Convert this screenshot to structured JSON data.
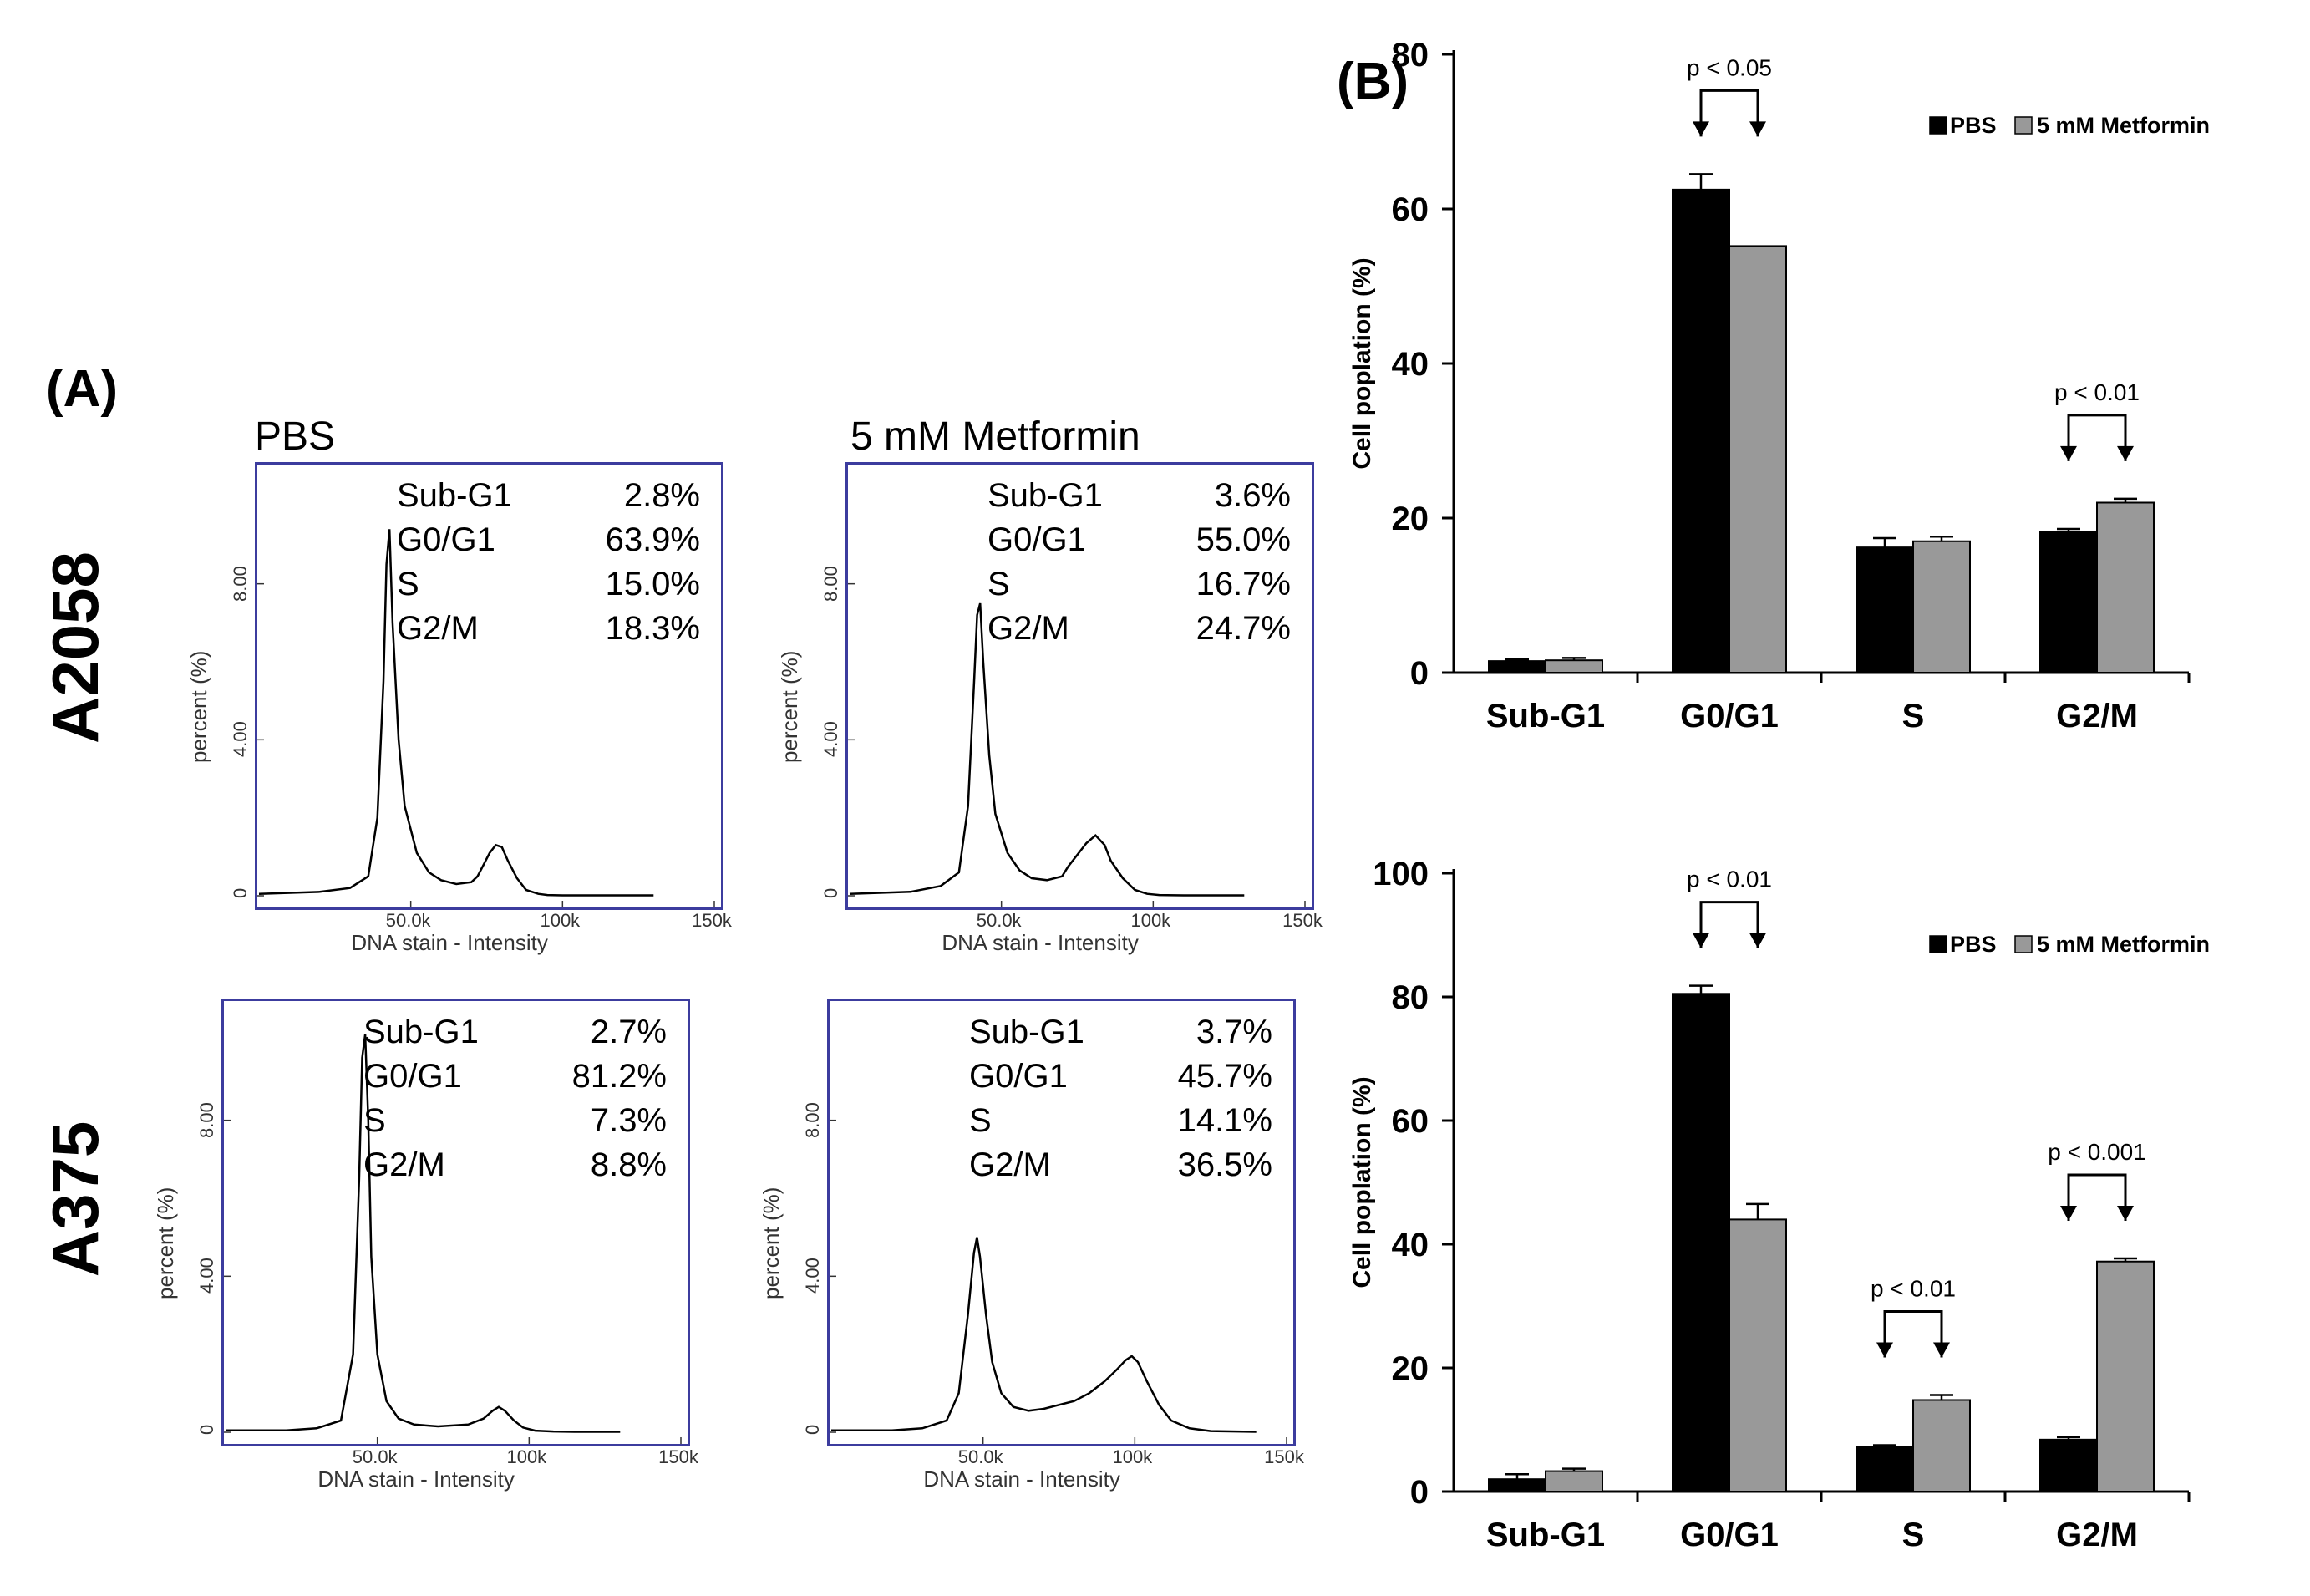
{
  "panel_a": {
    "label": "(A)",
    "column_headers": [
      "PBS",
      "5 mM Metformin"
    ],
    "row_labels": [
      "A2058",
      "A375"
    ],
    "histogram_x_label": "DNA stain - Intensity",
    "histogram_y_label": "percent (%)",
    "histogram_x_ticks": [
      "50.0k",
      "100k",
      "150k"
    ],
    "histogram_y_ticks": [
      "0",
      "4.00",
      "8.00"
    ]
  },
  "panel_b": {
    "label": "(B)"
  },
  "chart_data": [
    {
      "type": "area",
      "cell_line": "A2058",
      "condition": "PBS",
      "x": [
        0,
        20,
        30,
        36,
        39,
        41,
        42,
        43,
        44,
        46,
        48,
        52,
        56,
        60,
        65,
        70,
        72,
        74,
        76,
        78,
        80,
        82,
        85,
        88,
        92,
        95,
        100,
        110,
        120,
        130
      ],
      "y": [
        0.05,
        0.1,
        0.2,
        0.5,
        2.0,
        5.5,
        8.5,
        9.4,
        7.0,
        4.0,
        2.3,
        1.1,
        0.6,
        0.4,
        0.3,
        0.35,
        0.5,
        0.8,
        1.1,
        1.3,
        1.25,
        0.9,
        0.45,
        0.15,
        0.05,
        0.02,
        0.01,
        0.01,
        0.01,
        0.01
      ],
      "populations": [
        {
          "phase": "Sub-G1",
          "percent": "2.8%"
        },
        {
          "phase": "G0/G1",
          "percent": "63.9%"
        },
        {
          "phase": "S",
          "percent": "15.0%"
        },
        {
          "phase": "G2/M",
          "percent": "18.3%"
        }
      ]
    },
    {
      "type": "area",
      "cell_line": "A2058",
      "condition": "5 mM Metformin",
      "x": [
        0,
        20,
        30,
        36,
        39,
        41,
        42,
        43,
        44,
        46,
        48,
        52,
        56,
        60,
        65,
        70,
        72,
        75,
        78,
        81,
        84,
        86,
        90,
        94,
        98,
        102,
        110,
        120,
        130
      ],
      "y": [
        0.05,
        0.1,
        0.25,
        0.6,
        2.3,
        5.5,
        7.2,
        7.5,
        6.0,
        3.6,
        2.1,
        1.1,
        0.65,
        0.45,
        0.4,
        0.5,
        0.75,
        1.05,
        1.35,
        1.55,
        1.3,
        0.9,
        0.45,
        0.15,
        0.05,
        0.02,
        0.01,
        0.01,
        0.01
      ],
      "populations": [
        {
          "phase": "Sub-G1",
          "percent": "3.6%"
        },
        {
          "phase": "G0/G1",
          "percent": "55.0%"
        },
        {
          "phase": "S",
          "percent": "16.7%"
        },
        {
          "phase": "G2/M",
          "percent": "24.7%"
        }
      ]
    },
    {
      "type": "area",
      "cell_line": "A375",
      "condition": "PBS",
      "x": [
        0,
        20,
        30,
        38,
        42,
        44,
        45,
        46,
        47,
        48,
        50,
        53,
        57,
        62,
        70,
        80,
        85,
        88,
        90,
        92,
        95,
        98,
        102,
        108,
        115,
        130
      ],
      "y": [
        0.05,
        0.05,
        0.1,
        0.3,
        2.0,
        6.5,
        9.6,
        10.2,
        8.0,
        4.5,
        2.0,
        0.8,
        0.35,
        0.2,
        0.15,
        0.2,
        0.35,
        0.55,
        0.65,
        0.55,
        0.3,
        0.12,
        0.04,
        0.02,
        0.01,
        0.01
      ],
      "populations": [
        {
          "phase": "Sub-G1",
          "percent": "2.7%"
        },
        {
          "phase": "G0/G1",
          "percent": "81.2%"
        },
        {
          "phase": "S",
          "percent": "7.3%"
        },
        {
          "phase": "G2/M",
          "percent": "8.8%"
        }
      ]
    },
    {
      "type": "area",
      "cell_line": "A375",
      "condition": "5 mM Metformin",
      "x": [
        0,
        20,
        30,
        38,
        42,
        45,
        47,
        48,
        49,
        51,
        53,
        56,
        60,
        65,
        70,
        75,
        80,
        85,
        90,
        94,
        97,
        99,
        101,
        104,
        108,
        112,
        118,
        125,
        140
      ],
      "y": [
        0.05,
        0.05,
        0.1,
        0.3,
        1.0,
        3.0,
        4.6,
        5.0,
        4.5,
        3.0,
        1.8,
        1.0,
        0.65,
        0.55,
        0.6,
        0.7,
        0.8,
        1.0,
        1.3,
        1.6,
        1.85,
        1.95,
        1.8,
        1.3,
        0.7,
        0.3,
        0.1,
        0.03,
        0.01
      ],
      "populations": [
        {
          "phase": "Sub-G1",
          "percent": "3.7%"
        },
        {
          "phase": "G0/G1",
          "percent": "45.7%"
        },
        {
          "phase": "S",
          "percent": "14.1%"
        },
        {
          "phase": "G2/M",
          "percent": "36.5%"
        }
      ]
    },
    {
      "type": "bar",
      "cell_line": "A2058",
      "categories": [
        "Sub-G1",
        "G0/G1",
        "S",
        "G2/M"
      ],
      "series": [
        {
          "name": "PBS",
          "values": [
            1.5,
            62.5,
            16.2,
            18.2
          ],
          "errors": [
            0.2,
            2.0,
            1.2,
            0.4
          ],
          "color": "#000000"
        },
        {
          "name": "5 mM Metformin",
          "values": [
            1.6,
            55.2,
            17.0,
            22.0
          ],
          "errors": [
            0.3,
            0.0,
            0.6,
            0.5
          ],
          "color": "#999999"
        }
      ],
      "ylabel": "Cell poplation (%)",
      "ylim": [
        0,
        80
      ],
      "yticks": [
        0,
        20,
        40,
        60,
        80
      ],
      "annotations": [
        {
          "category": "G0/G1",
          "text": "p < 0.05"
        },
        {
          "category": "G2/M",
          "text": "p < 0.01"
        }
      ]
    },
    {
      "type": "bar",
      "cell_line": "A375",
      "categories": [
        "Sub-G1",
        "G0/G1",
        "S",
        "G2/M"
      ],
      "series": [
        {
          "name": "PBS",
          "values": [
            2.0,
            80.5,
            7.2,
            8.4
          ],
          "errors": [
            0.8,
            1.3,
            0.3,
            0.4
          ],
          "color": "#000000"
        },
        {
          "name": "5 mM Metformin",
          "values": [
            3.3,
            44.0,
            14.8,
            37.2
          ],
          "errors": [
            0.4,
            2.5,
            0.8,
            0.5
          ],
          "color": "#999999"
        }
      ],
      "ylabel": "Cell poplation (%)",
      "ylim": [
        0,
        100
      ],
      "yticks": [
        0,
        20,
        40,
        60,
        80,
        100
      ],
      "annotations": [
        {
          "category": "G0/G1",
          "text": "p < 0.01"
        },
        {
          "category": "S",
          "text": "p < 0.01"
        },
        {
          "category": "G2/M",
          "text": "p < 0.001"
        }
      ]
    }
  ]
}
